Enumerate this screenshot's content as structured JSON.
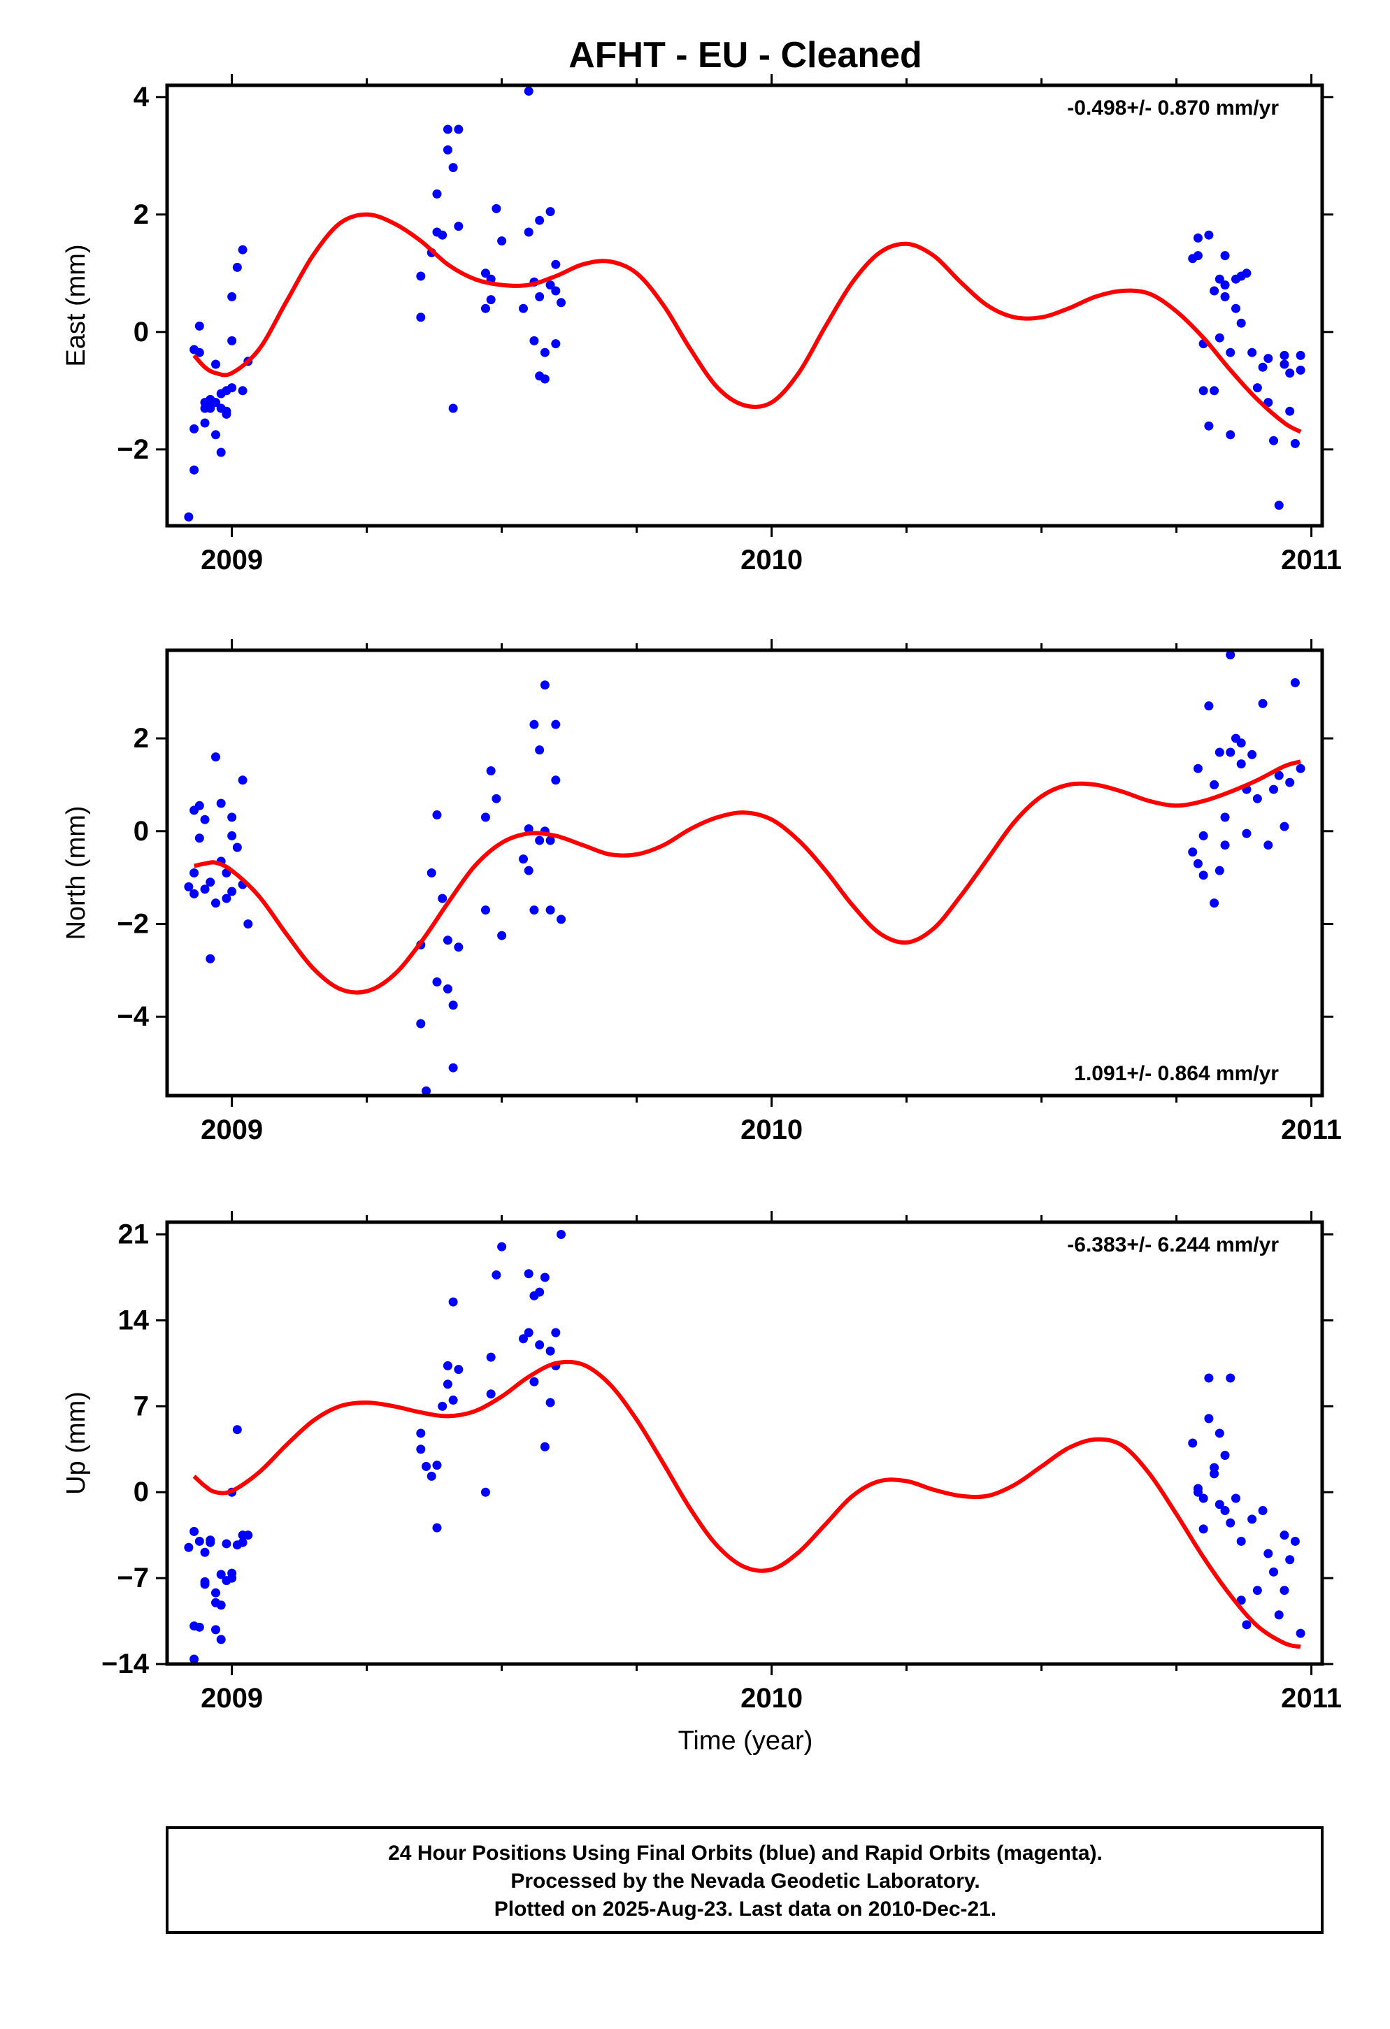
{
  "title": "AFHT  - EU - Cleaned",
  "xlabel": "Time (year)",
  "footer": {
    "line1": "24 Hour Positions Using Final Orbits (blue) and Rapid Orbits (magenta).",
    "line2": "Processed by the Nevada Geodetic Laboratory.",
    "line3": "Plotted on 2025-Aug-23. Last data on 2010-Dec-21."
  },
  "colors": {
    "points": "#0000ff",
    "fit": "#ff0000",
    "axis": "#000000"
  },
  "chart_data": [
    {
      "type": "scatter",
      "ylabel": "East (mm)",
      "rate": "-0.498+/- 0.870 mm/yr",
      "rate_position": "top-right",
      "xlim": [
        2008.88,
        2011.02
      ],
      "ylim": [
        -3.3,
        4.2
      ],
      "xticks": [
        2009,
        2010,
        2011
      ],
      "yticks": [
        -2,
        0,
        2,
        4
      ],
      "ytick_labels": [
        "−2",
        "0",
        "2",
        "4"
      ],
      "series": [
        {
          "kind": "points",
          "x": [
            2008.92,
            2008.93,
            2008.93,
            2008.93,
            2008.94,
            2008.94,
            2008.95,
            2008.95,
            2008.95,
            2008.96,
            2008.96,
            2008.96,
            2008.97,
            2008.97,
            2008.97,
            2008.98,
            2008.98,
            2008.98,
            2008.99,
            2008.99,
            2008.99,
            2009.0,
            2009.0,
            2009.0,
            2009.01,
            2009.02,
            2009.02,
            2009.03,
            2009.35,
            2009.35,
            2009.37,
            2009.38,
            2009.38,
            2009.39,
            2009.4,
            2009.4,
            2009.41,
            2009.41,
            2009.42,
            2009.42,
            2009.47,
            2009.47,
            2009.48,
            2009.48,
            2009.49,
            2009.5,
            2009.54,
            2009.55,
            2009.55,
            2009.56,
            2009.56,
            2009.57,
            2009.57,
            2009.57,
            2009.58,
            2009.58,
            2009.59,
            2009.59,
            2009.6,
            2009.6,
            2009.6,
            2009.61,
            2010.78,
            2010.79,
            2010.79,
            2010.8,
            2010.8,
            2010.81,
            2010.81,
            2010.82,
            2010.82,
            2010.83,
            2010.83,
            2010.84,
            2010.84,
            2010.84,
            2010.85,
            2010.85,
            2010.86,
            2010.86,
            2010.87,
            2010.87,
            2010.88,
            2010.89,
            2010.9,
            2010.91,
            2010.92,
            2010.92,
            2010.93,
            2010.94,
            2010.95,
            2010.95,
            2010.96,
            2010.96,
            2010.97,
            2010.98,
            2010.98
          ],
          "y": [
            -3.15,
            -0.3,
            -1.65,
            -2.35,
            0.1,
            -0.35,
            -1.3,
            -1.55,
            -1.2,
            -1.15,
            -1.3,
            -1.25,
            -1.75,
            -1.2,
            -0.55,
            -2.05,
            -1.05,
            -1.3,
            -1.35,
            -1.4,
            -1.0,
            -0.95,
            -0.15,
            0.6,
            1.1,
            1.4,
            -1.0,
            -0.5,
            0.95,
            0.25,
            1.35,
            2.35,
            1.7,
            1.65,
            3.1,
            3.45,
            2.8,
            -1.3,
            3.45,
            1.8,
            1.0,
            0.4,
            0.55,
            0.9,
            2.1,
            1.55,
            0.4,
            4.1,
            1.7,
            0.85,
            -0.15,
            -0.75,
            1.9,
            0.6,
            -0.35,
            -0.8,
            2.05,
            0.8,
            1.15,
            0.7,
            -0.2,
            0.5,
            1.25,
            1.6,
            1.3,
            -1.0,
            -0.2,
            1.65,
            -1.6,
            -1.0,
            0.7,
            0.9,
            -0.1,
            1.3,
            0.6,
            0.8,
            -0.35,
            -1.75,
            0.4,
            0.9,
            0.95,
            0.15,
            1.0,
            -0.35,
            -0.95,
            -0.6,
            -0.45,
            -1.2,
            -1.85,
            -2.95,
            -0.55,
            -0.4,
            -1.35,
            -0.7,
            -1.9,
            -0.65,
            -0.4
          ]
        },
        {
          "kind": "fit",
          "x": [
            2008.93,
            2008.95,
            2008.97,
            2009.0,
            2009.05,
            2009.1,
            2009.15,
            2009.2,
            2009.25,
            2009.3,
            2009.35,
            2009.4,
            2009.45,
            2009.5,
            2009.55,
            2009.6,
            2009.65,
            2009.7,
            2009.75,
            2009.8,
            2009.85,
            2009.9,
            2009.95,
            2010.0,
            2010.05,
            2010.1,
            2010.15,
            2010.2,
            2010.25,
            2010.3,
            2010.35,
            2010.4,
            2010.45,
            2010.5,
            2010.55,
            2010.6,
            2010.65,
            2010.7,
            2010.75,
            2010.8,
            2010.85,
            2010.9,
            2010.95,
            2010.98
          ],
          "y": [
            -0.4,
            -0.6,
            -0.7,
            -0.7,
            -0.3,
            0.5,
            1.3,
            1.85,
            2.0,
            1.85,
            1.55,
            1.15,
            0.9,
            0.8,
            0.8,
            0.95,
            1.15,
            1.2,
            1.0,
            0.45,
            -0.3,
            -0.95,
            -1.25,
            -1.2,
            -0.7,
            0.1,
            0.85,
            1.35,
            1.5,
            1.3,
            0.85,
            0.45,
            0.25,
            0.25,
            0.4,
            0.6,
            0.7,
            0.65,
            0.35,
            -0.1,
            -0.65,
            -1.15,
            -1.55,
            -1.7
          ]
        }
      ]
    },
    {
      "type": "scatter",
      "ylabel": "North (mm)",
      "rate": "1.091+/- 0.864 mm/yr",
      "rate_position": "bottom-right",
      "xlim": [
        2008.88,
        2011.02
      ],
      "ylim": [
        -5.7,
        3.9
      ],
      "xticks": [
        2009,
        2010,
        2011
      ],
      "yticks": [
        -4,
        -2,
        0,
        2
      ],
      "ytick_labels": [
        "−4",
        "−2",
        "0",
        "2"
      ],
      "series": [
        {
          "kind": "points",
          "x": [
            2008.92,
            2008.93,
            2008.93,
            2008.93,
            2008.94,
            2008.94,
            2008.95,
            2008.95,
            2008.96,
            2008.96,
            2008.97,
            2008.97,
            2008.98,
            2008.98,
            2008.99,
            2008.99,
            2009.0,
            2009.0,
            2009.0,
            2009.01,
            2009.02,
            2009.02,
            2009.03,
            2009.35,
            2009.35,
            2009.36,
            2009.37,
            2009.38,
            2009.38,
            2009.39,
            2009.4,
            2009.4,
            2009.41,
            2009.41,
            2009.42,
            2009.47,
            2009.47,
            2009.48,
            2009.49,
            2009.5,
            2009.54,
            2009.55,
            2009.55,
            2009.56,
            2009.56,
            2009.57,
            2009.57,
            2009.58,
            2009.58,
            2009.59,
            2009.59,
            2009.6,
            2009.6,
            2009.61,
            2010.78,
            2010.79,
            2010.79,
            2010.8,
            2010.8,
            2010.81,
            2010.82,
            2010.82,
            2010.83,
            2010.83,
            2010.84,
            2010.84,
            2010.85,
            2010.85,
            2010.86,
            2010.87,
            2010.87,
            2010.88,
            2010.88,
            2010.89,
            2010.9,
            2010.91,
            2010.92,
            2010.93,
            2010.94,
            2010.95,
            2010.96,
            2010.97,
            2010.98
          ],
          "y": [
            -1.2,
            0.45,
            -0.9,
            -1.35,
            0.55,
            -0.15,
            -1.25,
            0.25,
            -2.75,
            -1.1,
            1.6,
            -1.55,
            0.6,
            -0.65,
            -1.45,
            -0.9,
            0.3,
            -0.1,
            -1.3,
            -0.35,
            -1.15,
            1.1,
            -2.0,
            -2.45,
            -4.15,
            -5.6,
            -0.9,
            -3.25,
            0.35,
            -1.45,
            -3.4,
            -2.35,
            -5.1,
            -3.75,
            -2.5,
            -1.7,
            0.3,
            1.3,
            0.7,
            -2.25,
            -0.6,
            -0.85,
            0.05,
            -1.7,
            2.3,
            -0.2,
            1.75,
            3.15,
            0.0,
            -0.2,
            -1.7,
            2.3,
            1.1,
            -1.9,
            -0.45,
            -0.7,
            1.35,
            -0.1,
            -0.95,
            2.7,
            1.0,
            -1.55,
            -0.85,
            1.7,
            -0.3,
            0.3,
            1.7,
            3.8,
            2.0,
            1.9,
            1.45,
            0.9,
            -0.05,
            1.65,
            0.7,
            2.75,
            -0.3,
            0.9,
            1.2,
            0.1,
            1.05,
            3.2,
            1.35
          ]
        },
        {
          "kind": "fit",
          "x": [
            2008.93,
            2008.95,
            2008.97,
            2009.0,
            2009.05,
            2009.1,
            2009.15,
            2009.2,
            2009.25,
            2009.3,
            2009.35,
            2009.4,
            2009.45,
            2009.5,
            2009.55,
            2009.6,
            2009.65,
            2009.7,
            2009.75,
            2009.8,
            2009.85,
            2009.9,
            2009.95,
            2010.0,
            2010.05,
            2010.1,
            2010.15,
            2010.2,
            2010.25,
            2010.3,
            2010.35,
            2010.4,
            2010.45,
            2010.5,
            2010.55,
            2010.6,
            2010.65,
            2010.7,
            2010.75,
            2010.8,
            2010.85,
            2010.9,
            2010.95,
            2010.98
          ],
          "y": [
            -0.75,
            -0.7,
            -0.68,
            -0.85,
            -1.4,
            -2.2,
            -2.95,
            -3.4,
            -3.45,
            -3.1,
            -2.4,
            -1.55,
            -0.75,
            -0.25,
            -0.05,
            -0.1,
            -0.3,
            -0.5,
            -0.5,
            -0.3,
            0.05,
            0.3,
            0.4,
            0.25,
            -0.2,
            -0.85,
            -1.6,
            -2.2,
            -2.4,
            -2.1,
            -1.4,
            -0.6,
            0.2,
            0.75,
            1.0,
            1.0,
            0.85,
            0.65,
            0.55,
            0.65,
            0.85,
            1.1,
            1.4,
            1.5
          ]
        }
      ]
    },
    {
      "type": "scatter",
      "ylabel": "Up (mm)",
      "rate": "-6.383+/- 6.244 mm/yr",
      "rate_position": "top-right",
      "xlim": [
        2008.88,
        2011.02
      ],
      "ylim": [
        -14,
        22
      ],
      "xticks": [
        2009,
        2010,
        2011
      ],
      "yticks": [
        -14,
        -7,
        0,
        7,
        14,
        21
      ],
      "ytick_labels": [
        "−14",
        "−7",
        "0",
        "7",
        "14",
        "21"
      ],
      "series": [
        {
          "kind": "points",
          "x": [
            2008.92,
            2008.93,
            2008.93,
            2008.93,
            2008.94,
            2008.94,
            2008.95,
            2008.95,
            2008.95,
            2008.96,
            2008.96,
            2008.97,
            2008.97,
            2008.97,
            2008.98,
            2008.98,
            2008.98,
            2008.99,
            2008.99,
            2009.0,
            2009.0,
            2009.0,
            2009.01,
            2009.01,
            2009.02,
            2009.02,
            2009.03,
            2009.35,
            2009.35,
            2009.36,
            2009.37,
            2009.38,
            2009.38,
            2009.39,
            2009.4,
            2009.4,
            2009.41,
            2009.41,
            2009.42,
            2009.47,
            2009.48,
            2009.48,
            2009.49,
            2009.5,
            2009.54,
            2009.55,
            2009.55,
            2009.56,
            2009.56,
            2009.57,
            2009.57,
            2009.58,
            2009.58,
            2009.59,
            2009.59,
            2009.6,
            2009.6,
            2009.61,
            2010.78,
            2010.79,
            2010.79,
            2010.8,
            2010.8,
            2010.81,
            2010.81,
            2010.82,
            2010.82,
            2010.83,
            2010.83,
            2010.84,
            2010.84,
            2010.85,
            2010.85,
            2010.86,
            2010.87,
            2010.87,
            2010.88,
            2010.89,
            2010.9,
            2010.91,
            2010.92,
            2010.93,
            2010.94,
            2010.95,
            2010.95,
            2010.96,
            2010.97,
            2010.98
          ],
          "y": [
            -4.5,
            -10.9,
            -13.6,
            -3.2,
            -4.0,
            -11.0,
            -7.5,
            -4.9,
            -7.3,
            -3.9,
            -4.1,
            -9.0,
            -8.2,
            -11.2,
            -12.0,
            -9.2,
            -6.7,
            -4.2,
            -7.2,
            -7.0,
            -6.6,
            0.0,
            5.1,
            -4.3,
            -3.5,
            -4.1,
            -3.5,
            3.5,
            4.8,
            2.1,
            1.3,
            2.2,
            -2.9,
            7.0,
            10.3,
            8.8,
            15.5,
            7.5,
            10.0,
            0.0,
            8.0,
            11.0,
            17.7,
            20.0,
            12.5,
            13.0,
            17.8,
            16.0,
            9.0,
            12.0,
            16.3,
            3.7,
            17.5,
            11.5,
            7.3,
            13.0,
            10.3,
            21.0,
            4.0,
            0.0,
            0.3,
            -3.0,
            -0.5,
            6.0,
            9.3,
            2.0,
            1.5,
            -1.0,
            4.8,
            -1.5,
            3.0,
            -2.5,
            9.3,
            -0.5,
            -4.0,
            -8.8,
            -10.8,
            -2.2,
            -8.0,
            -1.5,
            -5.0,
            -6.5,
            -10.0,
            -3.5,
            -8.0,
            -5.5,
            -4.0,
            -11.5
          ]
        },
        {
          "kind": "fit",
          "x": [
            2008.93,
            2008.95,
            2008.97,
            2009.0,
            2009.05,
            2009.1,
            2009.15,
            2009.2,
            2009.25,
            2009.3,
            2009.35,
            2009.4,
            2009.45,
            2009.5,
            2009.55,
            2009.6,
            2009.65,
            2009.7,
            2009.75,
            2009.8,
            2009.85,
            2009.9,
            2009.95,
            2010.0,
            2010.05,
            2010.1,
            2010.15,
            2010.2,
            2010.25,
            2010.3,
            2010.35,
            2010.4,
            2010.45,
            2010.5,
            2010.55,
            2010.6,
            2010.65,
            2010.7,
            2010.75,
            2010.8,
            2010.85,
            2010.9,
            2010.95,
            2010.98
          ],
          "y": [
            1.3,
            0.5,
            0.0,
            0.1,
            1.6,
            3.8,
            5.8,
            7.0,
            7.3,
            7.0,
            6.5,
            6.2,
            6.6,
            7.8,
            9.4,
            10.5,
            10.4,
            8.8,
            5.9,
            2.3,
            -1.4,
            -4.4,
            -6.1,
            -6.3,
            -4.9,
            -2.6,
            -0.3,
            0.9,
            0.9,
            0.2,
            -0.3,
            -0.3,
            0.6,
            2.1,
            3.6,
            4.3,
            3.8,
            1.5,
            -1.8,
            -5.3,
            -8.4,
            -10.9,
            -12.3,
            -12.6
          ]
        }
      ]
    }
  ]
}
